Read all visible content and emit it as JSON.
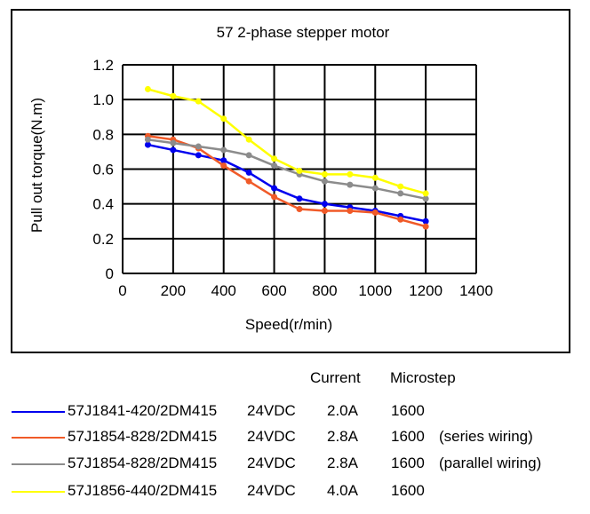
{
  "chart_data": {
    "type": "line",
    "title": "57 2-phase stepper motor",
    "xlabel": "Speed(r/min)",
    "ylabel": "Pull out torque(N.m)",
    "xlim": [
      0,
      1400
    ],
    "ylim": [
      0,
      1.2
    ],
    "xticks": [
      "0",
      "200",
      "400",
      "600",
      "800",
      "1000",
      "1200",
      "1400"
    ],
    "yticks": [
      "0",
      "0.2",
      "0.4",
      "0.6",
      "0.8",
      "1.0",
      "1.2"
    ],
    "grid": true,
    "x": [
      100,
      200,
      300,
      400,
      500,
      600,
      700,
      800,
      900,
      1000,
      1100,
      1200
    ],
    "series": [
      {
        "name": "57J1841-420/2DM415",
        "voltage": "24VDC",
        "current": "2.0A",
        "microstep": "1600",
        "note": "",
        "color": "#0000ee",
        "values": [
          0.74,
          0.71,
          0.68,
          0.65,
          0.58,
          0.49,
          0.43,
          0.4,
          0.38,
          0.36,
          0.33,
          0.3
        ]
      },
      {
        "name": "57J1854-828/2DM415",
        "voltage": "24VDC",
        "current": "2.8A",
        "microstep": "1600",
        "note": "(series wiring)",
        "color": "#f05a28",
        "values": [
          0.79,
          0.77,
          0.72,
          0.62,
          0.53,
          0.44,
          0.37,
          0.36,
          0.36,
          0.35,
          0.31,
          0.27
        ]
      },
      {
        "name": "57J1854-828/2DM415",
        "voltage": "24VDC",
        "current": "2.8A",
        "microstep": "1600",
        "note": "(parallel wiring)",
        "color": "#8c8c8c",
        "values": [
          0.77,
          0.75,
          0.73,
          0.71,
          0.68,
          0.62,
          0.57,
          0.53,
          0.51,
          0.49,
          0.46,
          0.43
        ]
      },
      {
        "name": "57J1856-440/2DM415",
        "voltage": "24VDC",
        "current": "4.0A",
        "microstep": "1600",
        "note": "",
        "color": "#ffff00",
        "values": [
          1.06,
          1.02,
          0.99,
          0.89,
          0.77,
          0.66,
          0.59,
          0.57,
          0.57,
          0.55,
          0.5,
          0.46
        ]
      }
    ]
  },
  "legend": {
    "current_header": "Current",
    "microstep_header": "Microstep"
  }
}
